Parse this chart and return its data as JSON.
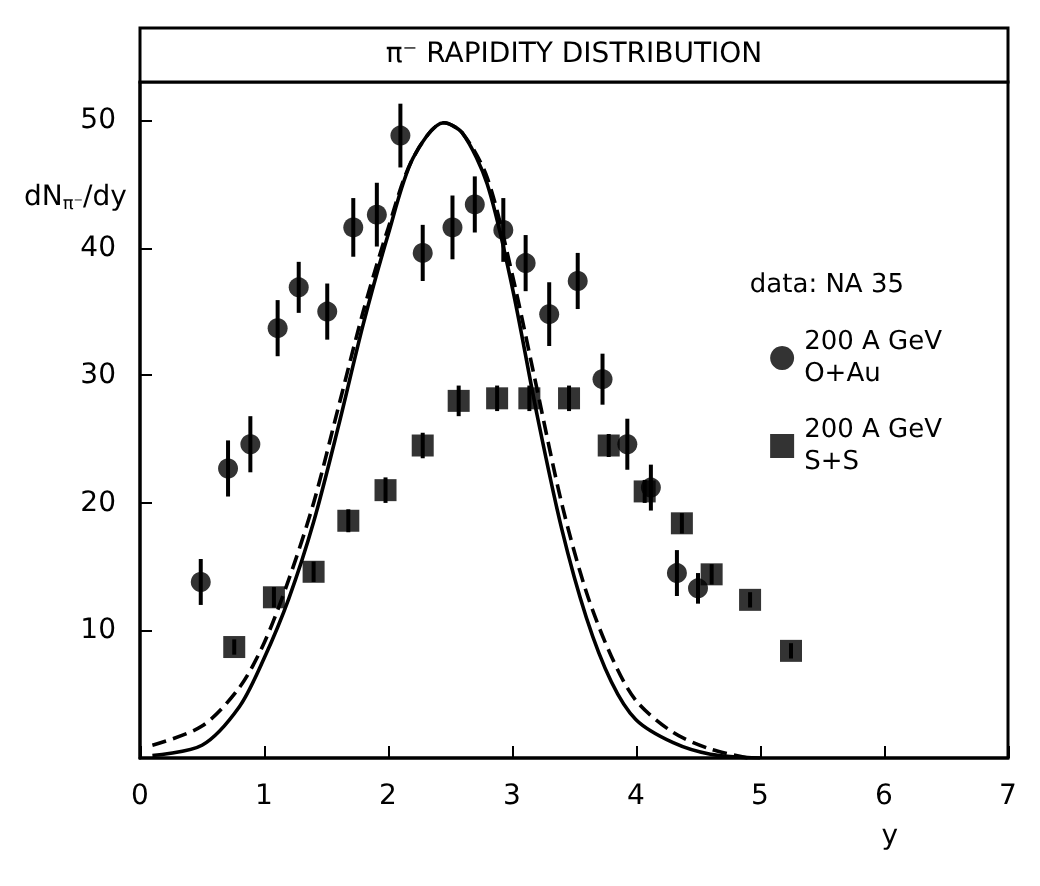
{
  "chart_data": {
    "type": "scatter",
    "title": "π⁻ RAPIDITY DISTRIBUTION",
    "xlabel": "y",
    "ylabel": "dN$_{π⁻}$/dy",
    "legend_title": "data: NA 35",
    "legend": "top right",
    "grid": false,
    "xlim": [
      0,
      7
    ],
    "xticks": [
      0,
      1,
      2,
      3,
      4,
      5,
      6,
      7
    ],
    "ylim": [
      0,
      53
    ],
    "yticks": [
      10,
      20,
      30,
      40,
      50
    ],
    "series": [
      {
        "name": "200 A GeV\nO+Au",
        "marker": "circle",
        "color": "#000000",
        "x": [
          0.49,
          0.71,
          0.89,
          1.11,
          1.28,
          1.51,
          1.72,
          1.91,
          2.1,
          2.28,
          2.52,
          2.7,
          2.93,
          3.11,
          3.3,
          3.53,
          3.73,
          3.93,
          4.12,
          4.33,
          4.5
        ],
        "values": [
          13.8,
          22.7,
          24.6,
          33.7,
          36.9,
          35.0,
          41.6,
          42.6,
          48.8,
          39.6,
          41.6,
          43.4,
          41.4,
          38.8,
          34.8,
          37.4,
          29.7,
          24.6,
          21.2,
          14.5,
          13.3
        ],
        "errors": [
          1.8,
          2.2,
          2.2,
          2.2,
          2.0,
          2.2,
          2.3,
          2.5,
          2.5,
          2.2,
          2.5,
          2.2,
          2.5,
          2.2,
          2.5,
          2.2,
          2.0,
          2.0,
          1.8,
          1.8,
          1.2
        ]
      },
      {
        "name": "200 A GeV\nS+S",
        "marker": "square",
        "color": "#000000",
        "x": [
          0.76,
          1.08,
          1.4,
          1.68,
          1.98,
          2.28,
          2.57,
          2.88,
          3.14,
          3.46,
          3.78,
          4.07,
          4.37,
          4.61,
          4.92,
          5.25
        ],
        "values": [
          8.7,
          12.6,
          14.6,
          18.6,
          21.0,
          24.5,
          28.0,
          28.2,
          28.2,
          28.2,
          24.5,
          20.9,
          18.4,
          14.4,
          12.4,
          8.4
        ],
        "errors": [
          0.6,
          0.8,
          0.8,
          0.9,
          1.0,
          1.0,
          1.2,
          1.0,
          1.0,
          1.0,
          0.9,
          0.9,
          0.8,
          0.8,
          0.6,
          0.6
        ]
      },
      {
        "type": "line",
        "marker": "none",
        "line_style": "solid",
        "color": "#000000",
        "x": [
          0.1,
          0.5,
          0.8,
          1.0,
          1.2,
          1.4,
          1.6,
          1.8,
          2.0,
          2.2,
          2.45,
          2.6,
          2.8,
          3.0,
          3.2,
          3.4,
          3.6,
          3.8,
          4.0,
          4.3,
          4.6,
          5.0
        ],
        "values": [
          0.2,
          1.0,
          4,
          7.8,
          12.5,
          18.5,
          26,
          34,
          41,
          47,
          49.8,
          49,
          45,
          37,
          27,
          18,
          11,
          6,
          3,
          1.2,
          0.3,
          0
        ]
      },
      {
        "type": "line",
        "marker": "none",
        "line_style": "dashed",
        "color": "#000000",
        "x": [
          0.1,
          0.5,
          0.8,
          1.0,
          1.2,
          1.4,
          1.6,
          1.8,
          2.0,
          2.2,
          2.45,
          2.6,
          2.8,
          3.0,
          3.2,
          3.4,
          3.6,
          3.8,
          4.0,
          4.3,
          4.6,
          4.9
        ],
        "values": [
          1.0,
          2.5,
          5.5,
          9,
          14,
          20,
          27.5,
          35,
          41.5,
          47,
          49.8,
          49,
          45.5,
          38,
          29,
          20,
          13,
          8,
          4.5,
          2,
          0.7,
          0
        ]
      }
    ]
  }
}
